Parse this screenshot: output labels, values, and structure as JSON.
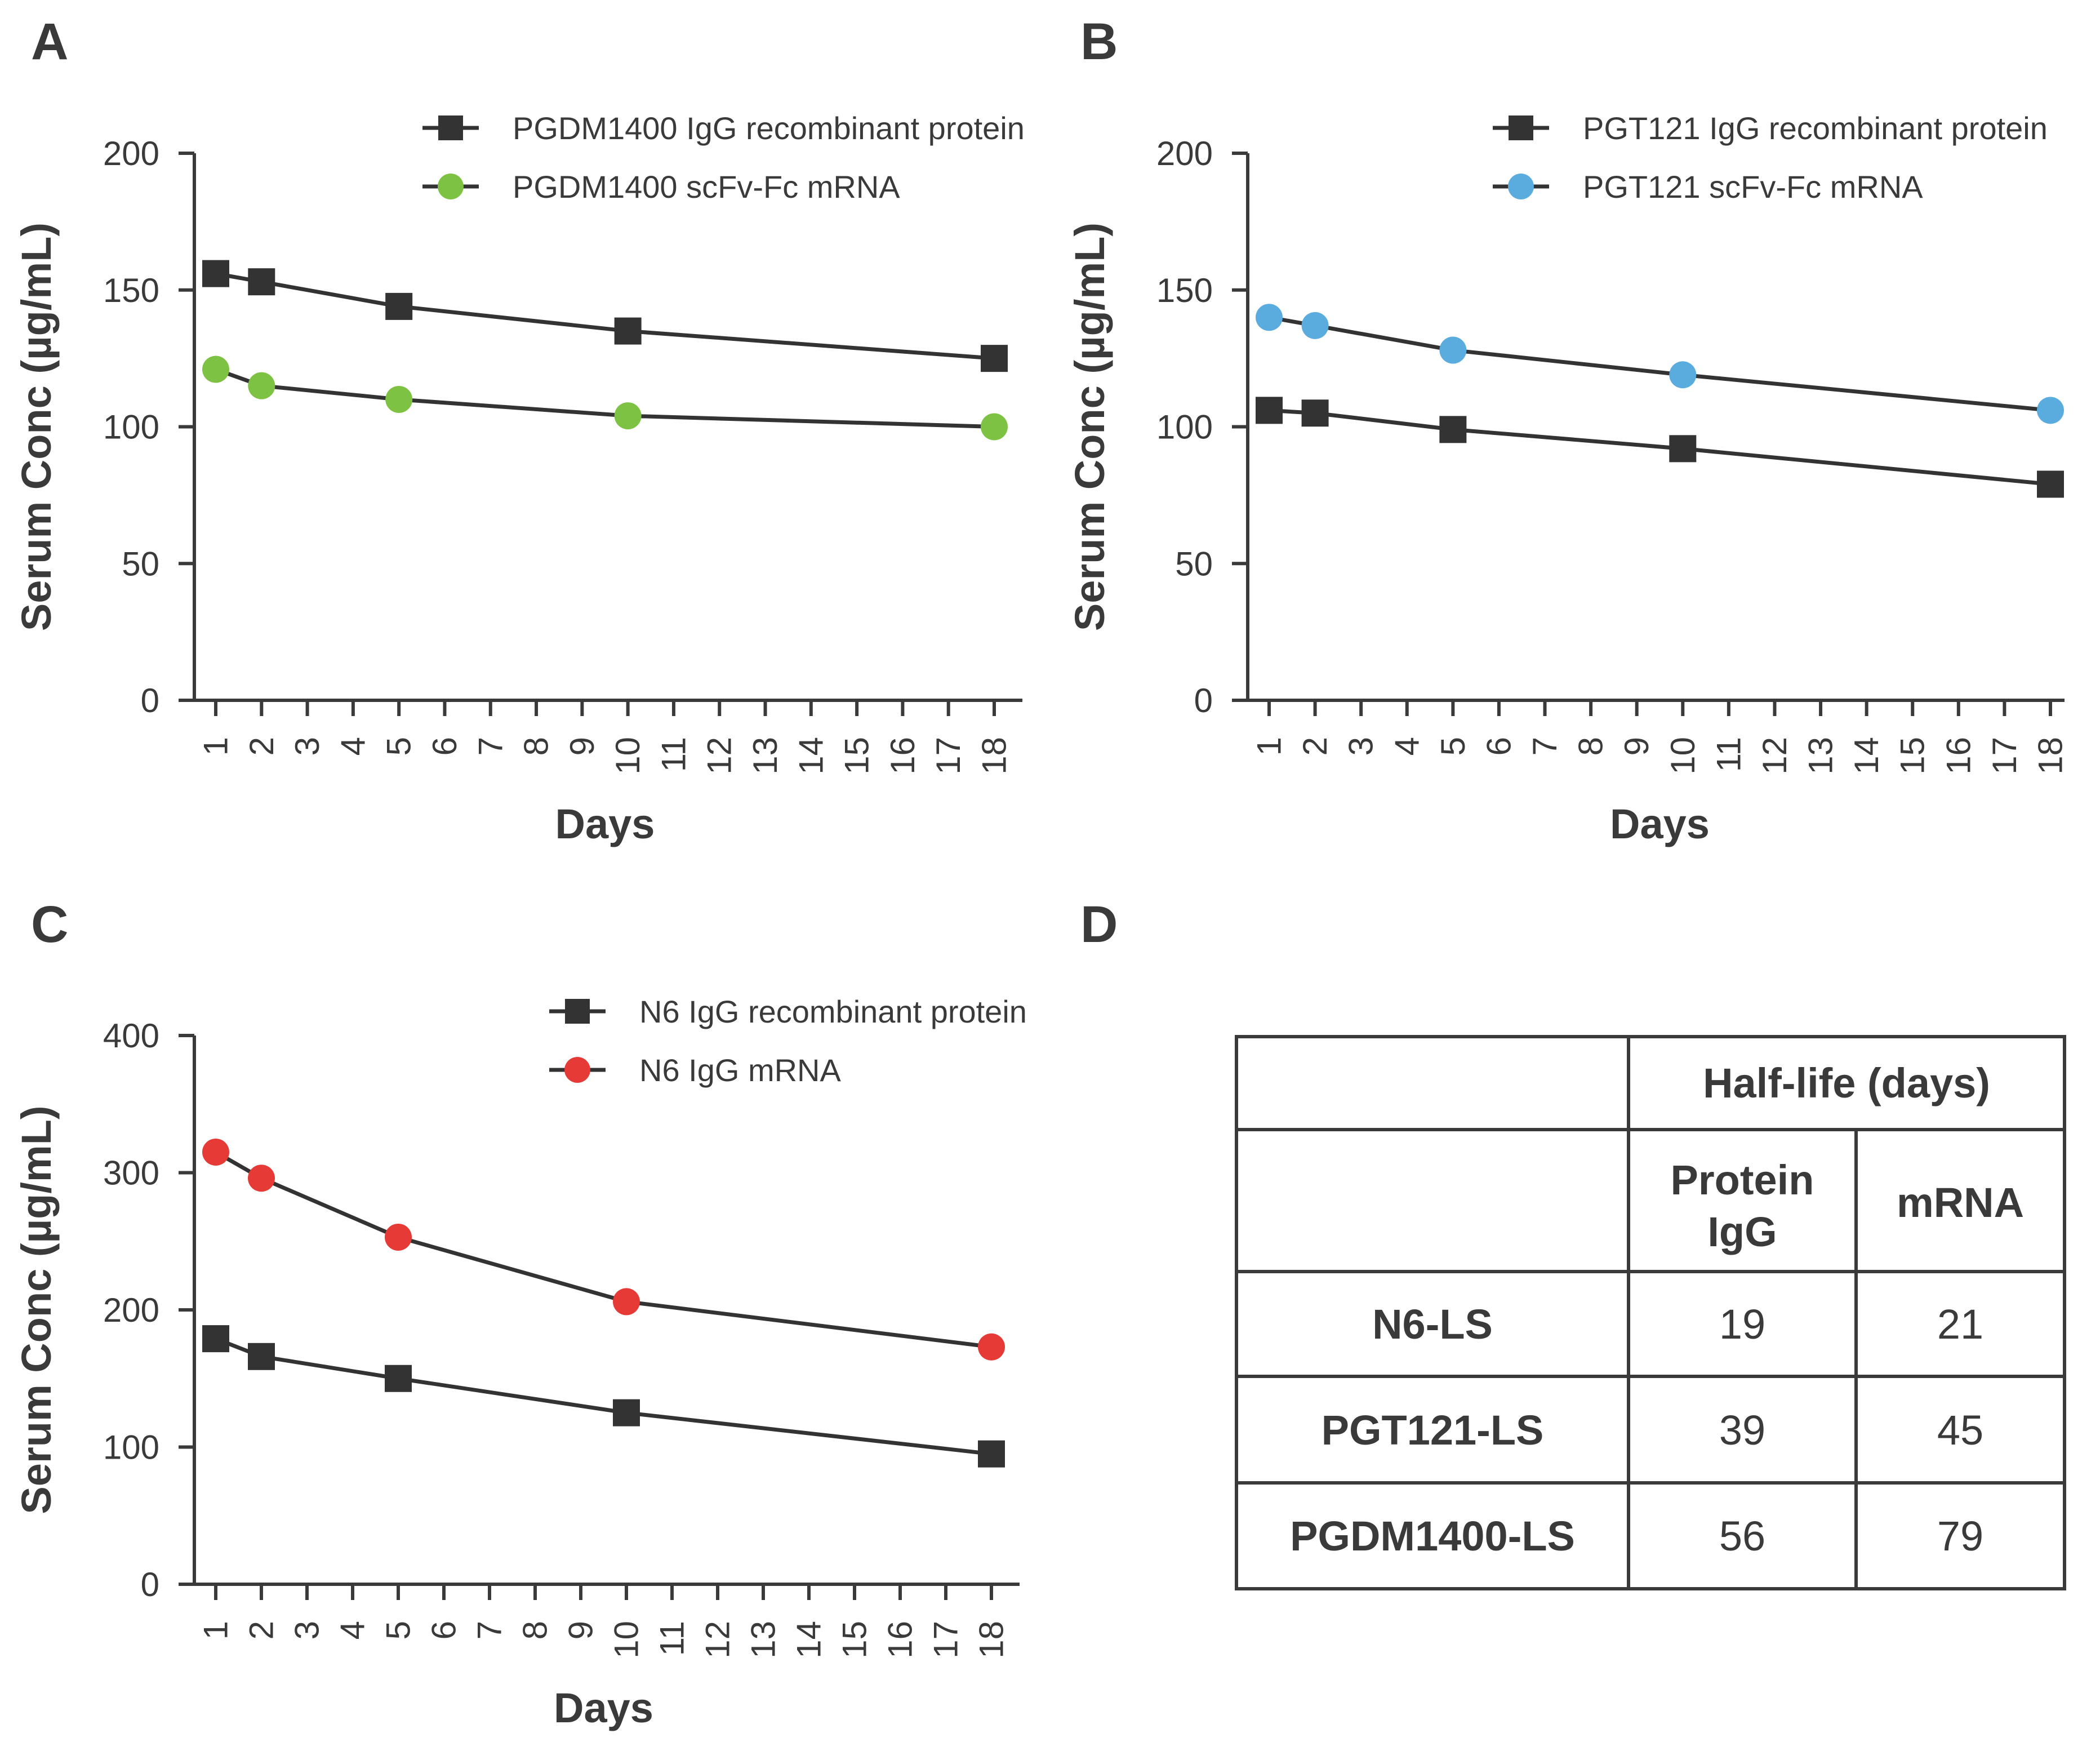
{
  "panel_letters": {
    "a": "A",
    "b": "B",
    "c": "C",
    "d": "D"
  },
  "chart_data": [
    {
      "panel": "A",
      "type": "line",
      "xlabel": "Days",
      "ylabel": "Serum Conc (µg/mL)",
      "xlim": [
        1,
        18
      ],
      "ylim": [
        0,
        200
      ],
      "x_ticks": [
        1,
        2,
        3,
        4,
        5,
        6,
        7,
        8,
        9,
        10,
        11,
        12,
        13,
        14,
        15,
        16,
        17,
        18
      ],
      "y_ticks": [
        0,
        50,
        100,
        150,
        200
      ],
      "legend_position": "top-right",
      "grid": false,
      "series": [
        {
          "name": "PGDM1400 IgG recombinant protein",
          "marker": "square",
          "color": "#333333",
          "x": [
            1,
            2,
            5,
            10,
            18
          ],
          "values": [
            156,
            153,
            144,
            135,
            125
          ]
        },
        {
          "name": "PGDM1400 scFv-Fc mRNA",
          "marker": "circle",
          "color": "#7dc242",
          "x": [
            1,
            2,
            5,
            10,
            18
          ],
          "values": [
            121,
            115,
            110,
            104,
            100
          ]
        }
      ]
    },
    {
      "panel": "B",
      "type": "line",
      "xlabel": "Days",
      "ylabel": "Serum Conc (µg/mL)",
      "xlim": [
        1,
        18
      ],
      "ylim": [
        0,
        200
      ],
      "x_ticks": [
        1,
        2,
        3,
        4,
        5,
        6,
        7,
        8,
        9,
        10,
        11,
        12,
        13,
        14,
        15,
        16,
        17,
        18
      ],
      "y_ticks": [
        0,
        50,
        100,
        150,
        200
      ],
      "legend_position": "top-right",
      "grid": false,
      "series": [
        {
          "name": "PGT121 IgG recombinant protein",
          "marker": "square",
          "color": "#333333",
          "x": [
            1,
            2,
            5,
            10,
            18
          ],
          "values": [
            106,
            105,
            99,
            92,
            79
          ]
        },
        {
          "name": "PGT121 scFv-Fc mRNA",
          "marker": "circle",
          "color": "#5aacdf",
          "x": [
            1,
            2,
            5,
            10,
            18
          ],
          "values": [
            140,
            137,
            128,
            119,
            106
          ]
        }
      ]
    },
    {
      "panel": "C",
      "type": "line",
      "xlabel": "Days",
      "ylabel": "Serum Conc (µg/mL)",
      "xlim": [
        1,
        18
      ],
      "ylim": [
        0,
        400
      ],
      "x_ticks": [
        1,
        2,
        3,
        4,
        5,
        6,
        7,
        8,
        9,
        10,
        11,
        12,
        13,
        14,
        15,
        16,
        17,
        18
      ],
      "y_ticks": [
        0,
        100,
        200,
        300,
        400
      ],
      "legend_position": "top-right",
      "grid": false,
      "series": [
        {
          "name": "N6 IgG recombinant protein",
          "marker": "square",
          "color": "#333333",
          "x": [
            1,
            2,
            5,
            10,
            18
          ],
          "values": [
            179,
            166,
            150,
            125,
            95
          ]
        },
        {
          "name": "N6 IgG mRNA",
          "marker": "circle",
          "color": "#e53a36",
          "x": [
            1,
            2,
            5,
            10,
            18
          ],
          "values": [
            315,
            296,
            253,
            206,
            173
          ]
        }
      ]
    },
    {
      "panel": "D",
      "type": "table",
      "group_header": "Half-life (days)",
      "column_headers": [
        "Protein IgG",
        "mRNA"
      ],
      "column_header_lines": [
        [
          "Protein",
          "IgG"
        ],
        [
          "mRNA"
        ]
      ],
      "rows": [
        {
          "label": "N6-LS",
          "values": [
            "19",
            "21"
          ]
        },
        {
          "label": "PGT121-LS",
          "values": [
            "39",
            "45"
          ]
        },
        {
          "label": "PGDM1400-LS",
          "values": [
            "56",
            "79"
          ]
        }
      ]
    }
  ]
}
